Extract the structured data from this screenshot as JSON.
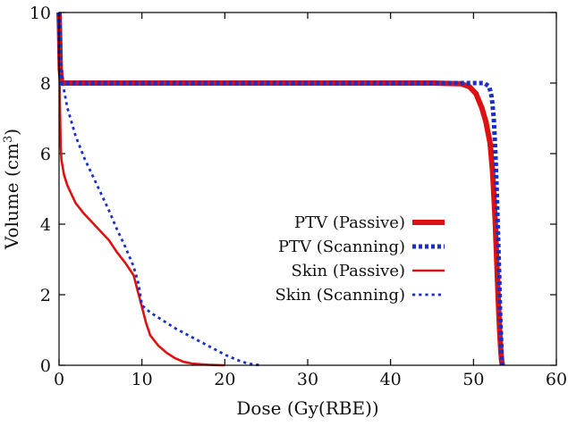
{
  "chart_data": {
    "type": "line",
    "title": "",
    "xlabel": "Dose (Gy(RBE))",
    "ylabel_prefix": "Volume (cm",
    "ylabel_sup": "3",
    "ylabel_suffix": ")",
    "xlim": [
      0,
      60
    ],
    "ylim": [
      0,
      10
    ],
    "xticks": [
      0,
      10,
      20,
      30,
      40,
      50,
      60
    ],
    "yticks": [
      0,
      2,
      4,
      6,
      8,
      10
    ],
    "xtick_labels": [
      "0",
      "10",
      "20",
      "30",
      "40",
      "50",
      "60"
    ],
    "ytick_labels": [
      "0",
      "2",
      "4",
      "6",
      "8",
      "10"
    ],
    "grid": false,
    "legend_position": "center-right",
    "colors": {
      "red": "#dd1111",
      "blue": "#1a2ec8"
    },
    "series": [
      {
        "name": "PTV (Passive)",
        "color": "#dd1111",
        "style": "thick-solid",
        "x": [
          0,
          0.05,
          0.15,
          0.3,
          10,
          30,
          45,
          48.5,
          49.5,
          50.3,
          51.0,
          51.5,
          52.0,
          52.3,
          52.6,
          52.8,
          53.0,
          53.15,
          53.3,
          53.4,
          53.5
        ],
        "y": [
          10,
          9.6,
          8.4,
          8.0,
          8.0,
          8.0,
          8.0,
          7.98,
          7.9,
          7.7,
          7.3,
          6.9,
          6.3,
          5.5,
          4.2,
          3.0,
          1.8,
          1.0,
          0.4,
          0.12,
          0
        ]
      },
      {
        "name": "PTV (Scanning)",
        "color": "#1a2ec8",
        "style": "thick-dotted",
        "x": [
          0,
          0.05,
          0.15,
          0.3,
          10,
          30,
          45,
          51.3,
          51.9,
          52.2,
          52.45,
          52.65,
          52.8,
          52.95,
          53.1,
          53.2,
          53.35,
          53.45
        ],
        "y": [
          10,
          9.6,
          8.4,
          8.0,
          8.0,
          8.0,
          8.0,
          8.0,
          7.9,
          7.6,
          7.0,
          6.0,
          5.0,
          3.8,
          2.6,
          1.6,
          0.6,
          0
        ]
      },
      {
        "name": "Skin (Passive)",
        "color": "#dd1111",
        "style": "solid",
        "x": [
          0,
          0.05,
          0.1,
          0.2,
          0.3,
          0.6,
          1.0,
          2.0,
          3.0,
          4.0,
          5.0,
          6.0,
          7.0,
          8.0,
          9.0,
          9.5,
          10.0,
          10.5,
          11.0,
          12.0,
          13.0,
          14.0,
          15.0,
          16.0,
          17.0,
          18.0,
          19.0,
          20.0
        ],
        "y": [
          10,
          9.0,
          7.5,
          6.2,
          5.8,
          5.4,
          5.1,
          4.6,
          4.3,
          4.05,
          3.8,
          3.55,
          3.2,
          2.9,
          2.55,
          2.1,
          1.65,
          1.2,
          0.85,
          0.55,
          0.35,
          0.2,
          0.1,
          0.05,
          0.03,
          0.015,
          0.005,
          0
        ]
      },
      {
        "name": "Skin (Scanning)",
        "color": "#1a2ec8",
        "style": "dotted",
        "x": [
          0,
          0.1,
          0.3,
          0.6,
          1.0,
          2.0,
          3.0,
          4.0,
          5.0,
          6.0,
          7.0,
          8.0,
          9.0,
          9.6,
          10.0,
          11.0,
          12.0,
          14.0,
          16.0,
          18.0,
          20.0,
          21.5,
          22.5,
          23.5,
          24.5
        ],
        "y": [
          10,
          9.4,
          8.5,
          7.8,
          7.3,
          6.5,
          5.9,
          5.4,
          4.9,
          4.4,
          3.85,
          3.35,
          2.8,
          2.3,
          1.7,
          1.5,
          1.35,
          1.05,
          0.8,
          0.55,
          0.3,
          0.15,
          0.07,
          0.02,
          0
        ]
      }
    ]
  }
}
